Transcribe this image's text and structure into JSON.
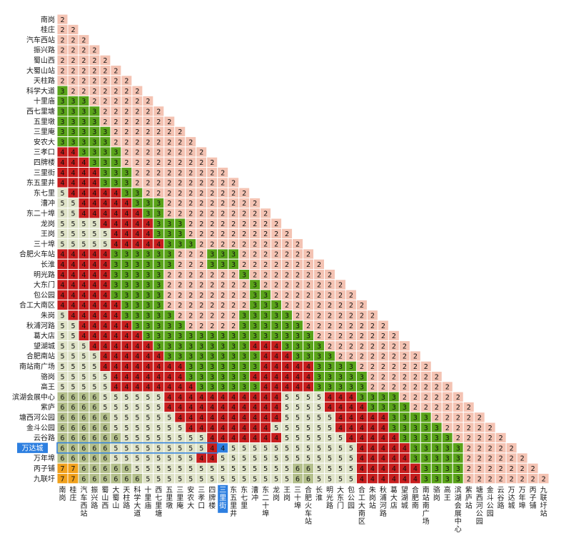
{
  "chart_data": {
    "type": "heatmap",
    "stations": [
      "南岗",
      "桂庄",
      "汽车西站",
      "振兴路",
      "蜀山西",
      "大蜀山站",
      "天柱路",
      "科学大道",
      "十里庙",
      "西七里塘",
      "五里墩",
      "三里庵",
      "安农大",
      "三孝口",
      "四牌楼",
      "三里街",
      "东五里井",
      "东七里",
      "漕冲",
      "东二十埠",
      "龙岗",
      "王岗",
      "三十埠",
      "合肥火车站",
      "长淮",
      "明光路",
      "大东门",
      "包公园",
      "合工大南区",
      "朱岗",
      "秋浦河路",
      "葛大店",
      "望湖城",
      "合肥南站",
      "南站南广场",
      "骆岗",
      "高王",
      "滨湖会展中心",
      "紫庐",
      "塘西河公园",
      "金斗公园",
      "云谷路",
      "万达城",
      "万年埠",
      "丙子铺",
      "九联圩"
    ],
    "column_labels": [
      "南岗",
      "桂庄",
      "汽车西站",
      "振兴路",
      "蜀山西",
      "大蜀山",
      "天柱路",
      "科学大道",
      "十里庙",
      "西七里塘",
      "五里墩",
      "三里庵",
      "安农大",
      "三孝口",
      "四牌楼",
      "三里街",
      "东五里井",
      "东七里",
      "漕冲",
      "东二十埠",
      "龙岗",
      "王岗",
      "三十埠",
      "合肥火车站",
      "长淮",
      "明光路",
      "大东门",
      "包公园",
      "合工大南区",
      "朱岗站",
      "秋浦河路",
      "葛大店",
      "望湖城",
      "合肥南",
      "南站南广场",
      "骆岗",
      "高王",
      "滨湖会展中心",
      "紫庐站",
      "塘西河公园",
      "金斗公园",
      "云谷路",
      "万达城",
      "万年埠",
      "丙子铺",
      "九联圩站"
    ],
    "highlighted_row": "万达城",
    "highlighted_column": "三里街",
    "value_colors": {
      "2": "#f4c3b3",
      "3": "#5aa41a",
      "4": "#c81e1e",
      "5": "#dfe3c8",
      "6": "#b4c08c",
      "7": "#f1a11c"
    },
    "highlight_color": "#2d7fe0",
    "rows": [
      "2",
      "22",
      "222",
      "2222",
      "22222",
      "222222",
      "2222222",
      "32222222",
      "333222222",
      "3333222222",
      "33332222222",
      "333332222222",
      "3333322222222",
      "44333322222222",
      "444333222222222",
      "4444333222222222",
      "44443332222222222",
      "544444332222222222",
      "5544444333222222222",
      "55444444332222222222",
      "555544444333222222222",
      "5555544443332222222222",
      "55555444443332222222222",
      "444443333332223332222222",
      "4444433333322233322222222",
      "44444333332222222322222222",
      "444443333322222222322222222",
      "4444433333222222223322222222",
      "44444433332222222233322222222",
      "544444333332222223333322222222",
      "5544444333332222233333322222222",
      "55444444333333333333333322222222",
      "555444444333333333444333322222222",
      "5555444444333333333444333322222222",
      "55554444444433333334444433332222222",
      "555554444444333333444444333332222222",
      "5555544444444333333444443333322222222",
      "66665555554444444444455554443333222222",
      "666655555544444444444555544443333222222",
      "6666655555544444444445555544444333322222",
      "66666555555544444444555555444443333322222",
      "666666555555554444444555555444443333322222",
      "6666655555555544555555555555444443333322222",
      "66666555555554455555555555554444433333222222",
      "776666655555555555555566555544444433332222222",
      "7766666655555555555555665555444444333322222222"
    ]
  }
}
